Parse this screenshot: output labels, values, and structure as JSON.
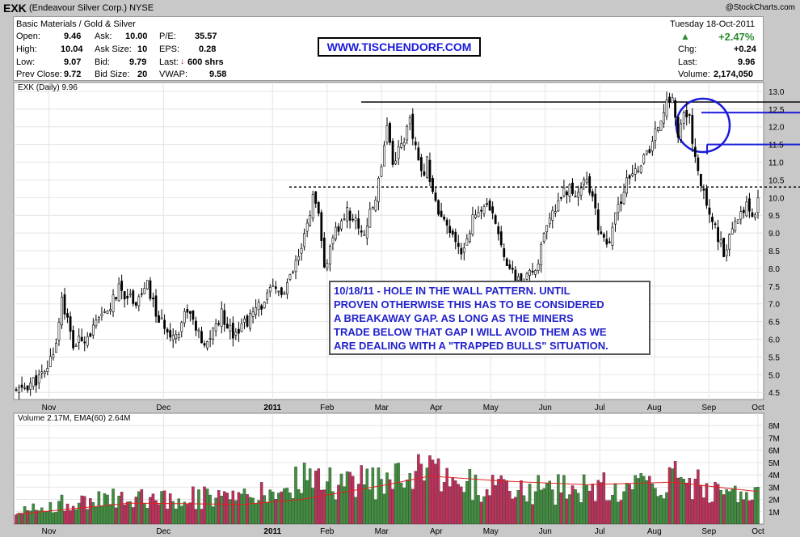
{
  "header": {
    "symbol": "EXK",
    "company": "(Endeavour Silver Corp.) NYSE",
    "copyright": "@StockCharts.com"
  },
  "quote": {
    "sector": "Basic Materials / Gold & Silver",
    "open_label": "Open:",
    "open": "9.46",
    "high_label": "High:",
    "high": "10.04",
    "low_label": "Low:",
    "low": "9.07",
    "prev_label": "Prev Close:",
    "prev": "9.72",
    "ask_label": "Ask:",
    "ask": "10.00",
    "asksize_label": "Ask Size:",
    "asksize": "10",
    "bid_label": "Bid:",
    "bid": "9.79",
    "bidsize_label": "Bid Size:",
    "bidsize": "20",
    "pe_label": "P/E:",
    "pe": "35.57",
    "eps_label": "EPS:",
    "eps": "0.28",
    "last_label": "Last:",
    "last_trade": "600 shrs",
    "vwap_label": "VWAP:",
    "vwap": "9.58",
    "date": "Tuesday  18-Oct-2011",
    "pct_change": "+2.47%",
    "chg_label": "Chg:",
    "chg": "+0.24",
    "last2_label": "Last:",
    "last": "9.96",
    "volume_label": "Volume:",
    "volume": "2,174,050"
  },
  "site": "WWW.TISCHENDORF.COM",
  "annotation": [
    "10/18/11 - HOLE IN THE WALL PATTERN. UNTIL",
    "PROVEN OTHERWISE THIS HAS TO BE CONSIDERED",
    "A BREAKAWAY GAP. AS LONG AS THE MINERS",
    "TRADE BELOW THAT GAP I WILL AVOID THEM AS WE",
    "ARE DEALING WITH A \"TRAPPED BULLS\" SITUATION."
  ],
  "colors": {
    "up": "#3f8f3f",
    "down": "#c0305a",
    "ema": "#e02020",
    "anno": "#1a1adc"
  },
  "chart_data": [
    {
      "type": "candlestick",
      "title": "EXK (Daily) 9.96",
      "ylim": [
        4.3,
        13.25
      ],
      "y_ticks": [
        "4.5",
        "5.0",
        "5.5",
        "6.0",
        "6.5",
        "7.0",
        "7.5",
        "8.0",
        "8.5",
        "9.0",
        "9.5",
        "10.0",
        "10.5",
        "11.0",
        "11.5",
        "12.0",
        "12.5",
        "13.0"
      ],
      "x_ticks": [
        "Nov",
        "Dec",
        "2011",
        "Feb",
        "Mar",
        "Apr",
        "May",
        "Jun",
        "Jul",
        "Aug",
        "Sep",
        "Oct"
      ],
      "resistance": 12.7,
      "support": 10.3,
      "gap_high": 12.4,
      "gap_low": 11.5,
      "close_keypoints": [
        [
          0,
          4.5
        ],
        [
          6,
          4.8
        ],
        [
          10,
          5.0
        ],
        [
          14,
          5.9
        ],
        [
          16,
          7.2
        ],
        [
          20,
          5.8
        ],
        [
          26,
          6.2
        ],
        [
          32,
          6.8
        ],
        [
          36,
          7.4
        ],
        [
          42,
          7.1
        ],
        [
          46,
          7.5
        ],
        [
          50,
          6.5
        ],
        [
          56,
          6.1
        ],
        [
          60,
          6.9
        ],
        [
          66,
          5.7
        ],
        [
          68,
          6.1
        ],
        [
          72,
          6.7
        ],
        [
          76,
          6.2
        ],
        [
          82,
          6.6
        ],
        [
          86,
          7.0
        ],
        [
          90,
          7.4
        ],
        [
          94,
          7.3
        ],
        [
          96,
          7.7
        ],
        [
          100,
          8.5
        ],
        [
          104,
          10.0
        ],
        [
          106,
          9.4
        ],
        [
          108,
          8.0
        ],
        [
          112,
          9.0
        ],
        [
          116,
          9.6
        ],
        [
          122,
          9.0
        ],
        [
          126,
          10.0
        ],
        [
          128,
          11.0
        ],
        [
          130,
          12.1
        ],
        [
          132,
          11.0
        ],
        [
          136,
          11.7
        ],
        [
          138,
          12.1
        ],
        [
          142,
          10.6
        ],
        [
          144,
          11.0
        ],
        [
          148,
          9.5
        ],
        [
          152,
          9.0
        ],
        [
          156,
          8.4
        ],
        [
          160,
          9.4
        ],
        [
          164,
          9.8
        ],
        [
          168,
          9.3
        ],
        [
          172,
          8.2
        ],
        [
          174,
          7.8
        ],
        [
          178,
          7.6
        ],
        [
          182,
          8.0
        ],
        [
          186,
          9.1
        ],
        [
          190,
          9.9
        ],
        [
          192,
          10.3
        ],
        [
          196,
          10.1
        ],
        [
          200,
          10.6
        ],
        [
          204,
          9.2
        ],
        [
          208,
          8.6
        ],
        [
          210,
          9.5
        ],
        [
          214,
          10.4
        ],
        [
          218,
          10.9
        ],
        [
          222,
          11.3
        ],
        [
          226,
          12.3
        ],
        [
          230,
          12.9
        ],
        [
          232,
          11.7
        ],
        [
          234,
          12.3
        ],
        [
          236,
          12.2
        ],
        [
          238,
          11.1
        ],
        [
          240,
          10.3
        ],
        [
          244,
          9.4
        ],
        [
          248,
          8.4
        ],
        [
          250,
          8.8
        ],
        [
          254,
          9.6
        ],
        [
          256,
          9.9
        ],
        [
          258,
          9.4
        ],
        [
          260,
          9.96
        ]
      ],
      "volume_panel": {
        "title": "Volume 2.17M, EMA(60) 2.64M",
        "ylim": [
          0,
          9
        ],
        "y_ticks": [
          "1M",
          "2M",
          "3M",
          "4M",
          "5M",
          "6M",
          "7M",
          "8M"
        ],
        "volume_keypoints": [
          [
            0,
            1.0
          ],
          [
            20,
            1.8
          ],
          [
            40,
            2.2
          ],
          [
            60,
            2.2
          ],
          [
            80,
            2.0
          ],
          [
            96,
            3.0
          ],
          [
            102,
            4.0
          ],
          [
            110,
            3.2
          ],
          [
            126,
            3.5
          ],
          [
            134,
            4.5
          ],
          [
            148,
            3.8
          ],
          [
            170,
            2.8
          ],
          [
            190,
            2.8
          ],
          [
            210,
            3.0
          ],
          [
            230,
            3.6
          ],
          [
            245,
            2.8
          ],
          [
            260,
            2.3
          ]
        ],
        "ema_keypoints": [
          [
            0,
            0.8
          ],
          [
            40,
            1.7
          ],
          [
            80,
            1.6
          ],
          [
            100,
            2.0
          ],
          [
            130,
            3.2
          ],
          [
            145,
            3.9
          ],
          [
            170,
            3.5
          ],
          [
            200,
            3.2
          ],
          [
            230,
            3.4
          ],
          [
            260,
            2.64
          ]
        ]
      }
    }
  ]
}
